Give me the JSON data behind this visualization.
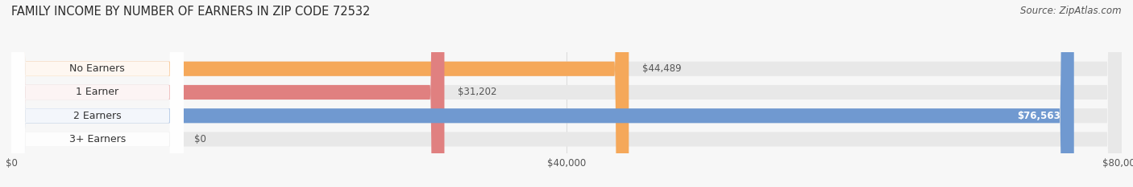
{
  "title": "FAMILY INCOME BY NUMBER OF EARNERS IN ZIP CODE 72532",
  "source": "Source: ZipAtlas.com",
  "categories": [
    "No Earners",
    "1 Earner",
    "2 Earners",
    "3+ Earners"
  ],
  "values": [
    44489,
    31202,
    76563,
    0
  ],
  "bar_colors": [
    "#F5A85A",
    "#E08080",
    "#7099D0",
    "#C4A0C8"
  ],
  "bar_bg_color": "#E8E8E8",
  "value_labels": [
    "$44,489",
    "$31,202",
    "$76,563",
    "$0"
  ],
  "xlim": [
    0,
    80000
  ],
  "xticks": [
    0,
    40000,
    80000
  ],
  "xtick_labels": [
    "$0",
    "$40,000",
    "$80,000"
  ],
  "title_fontsize": 10.5,
  "source_fontsize": 8.5,
  "bar_label_fontsize": 9,
  "value_label_fontsize": 8.5,
  "background_color": "#F7F7F7",
  "bar_height": 0.62,
  "grid_color": "#DDDDDD"
}
